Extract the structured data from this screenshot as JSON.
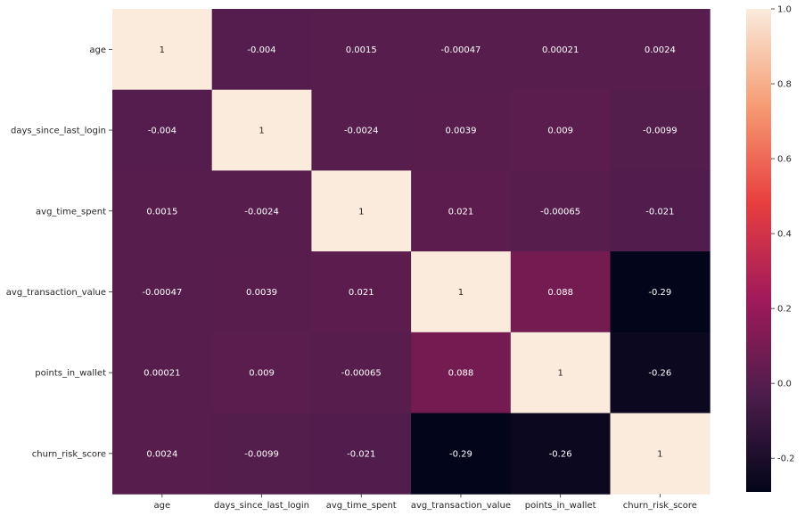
{
  "chart_data": {
    "type": "heatmap",
    "title": "",
    "xlabel": "",
    "ylabel": "",
    "rows": [
      "age",
      "days_since_last_login",
      "avg_time_spent",
      "avg_transaction_value",
      "points_in_wallet",
      "churn_risk_score"
    ],
    "columns": [
      "age",
      "days_since_last_login",
      "avg_time_spent",
      "avg_transaction_value",
      "points_in_wallet",
      "churn_risk_score"
    ],
    "values": [
      [
        1,
        -0.004,
        0.0015,
        -0.00047,
        0.00021,
        0.0024
      ],
      [
        -0.004,
        1,
        -0.0024,
        0.0039,
        0.009,
        -0.0099
      ],
      [
        0.0015,
        -0.0024,
        1,
        0.021,
        -0.00065,
        -0.021
      ],
      [
        -0.00047,
        0.0039,
        0.021,
        1,
        0.088,
        -0.29
      ],
      [
        0.00021,
        0.009,
        -0.00065,
        0.088,
        1,
        -0.26
      ],
      [
        0.0024,
        -0.0099,
        -0.021,
        -0.29,
        -0.26,
        1
      ]
    ],
    "annotations": [
      [
        "1",
        "-0.004",
        "0.0015",
        "-0.00047",
        "0.00021",
        "0.0024"
      ],
      [
        "-0.004",
        "1",
        "-0.0024",
        "0.0039",
        "0.009",
        "-0.0099"
      ],
      [
        "0.0015",
        "-0.0024",
        "1",
        "0.021",
        "-0.00065",
        "-0.021"
      ],
      [
        "-0.00047",
        "0.0039",
        "0.021",
        "1",
        "0.088",
        "-0.29"
      ],
      [
        "0.00021",
        "0.009",
        "-0.00065",
        "0.088",
        "1",
        "-0.26"
      ],
      [
        "0.0024",
        "-0.0099",
        "-0.021",
        "-0.29",
        "-0.26",
        "1"
      ]
    ],
    "colorbar": {
      "range": [
        -0.29,
        1.0
      ],
      "ticks": [
        "1.0",
        "0.8",
        "0.6",
        "0.4",
        "0.2",
        "0.0",
        "-0.2"
      ],
      "colormap": "rocket",
      "colors": [
        "#03051a",
        "#4c1d4b",
        "#a11a5b",
        "#e83f3f",
        "#f69c73",
        "#faebdd"
      ]
    },
    "grid": false,
    "legend": "colorbar-right"
  }
}
